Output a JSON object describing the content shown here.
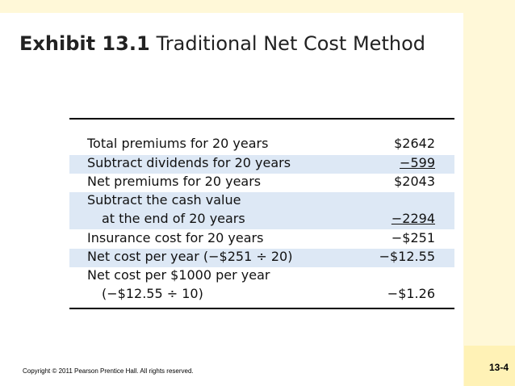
{
  "slide": {
    "title_number": "Exhibit 13.1",
    "title_text": "Traditional Net Cost Method",
    "copyright": "Copyright © 2011 Pearson Prentice Hall. All rights reserved.",
    "slide_number": "13-4"
  },
  "table": {
    "rows": [
      {
        "label": "Total premiums for 20 years",
        "value": "$2642"
      },
      {
        "label": "Subtract dividends for 20 years",
        "value": "−599"
      },
      {
        "label": "Net premiums for 20 years",
        "value": "$2043"
      },
      {
        "label": "Subtract the cash value",
        "label2": "at the end of 20 years",
        "value": "−2294"
      },
      {
        "label": "Insurance cost for 20 years",
        "value": "−$251"
      },
      {
        "label": "Net cost per year (−$251 ÷ 20)",
        "value": "−$12.55"
      },
      {
        "label": "Net cost per $1000 per year",
        "label2": "(−$12.55 ÷ 10)",
        "value": "−$1.26"
      }
    ]
  }
}
